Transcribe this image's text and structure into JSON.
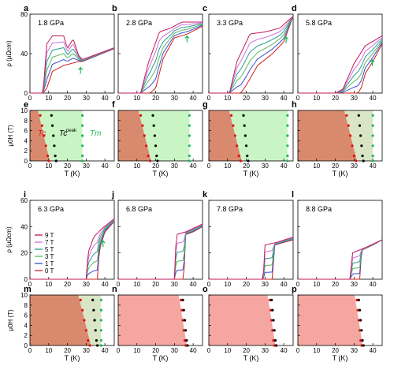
{
  "figure": {
    "ylabel_rho": "ρ (μΩcm)",
    "ylabel_field": "μ0H (T)",
    "xlabel": "T (K)",
    "label_tc": "Tc",
    "label_tcpeak": "Tc",
    "label_tcpeak_sup": "peak",
    "label_tm": "Tm"
  },
  "colors": {
    "field_9T": "#c2185b",
    "field_7T": "#d070d8",
    "field_5T": "#2a9d8f",
    "field_3T": "#5cb85c",
    "field_1T": "#3a4fd0",
    "field_0T": "#d11f1f",
    "sc_region": "#d98a6e",
    "sc_region_light": "#f5a6a0",
    "intermediate_region": "#d9e6c6",
    "normal_region": "#c9f5c4",
    "tc_dots": "#e01010",
    "tcpeak_dots": "#000000",
    "tm_dots": "#1db954",
    "arrow": "#1db954"
  },
  "legend": {
    "labels": [
      "9 T",
      "7 T",
      "5 T",
      "3 T",
      "1 T",
      "0 T"
    ]
  },
  "chart_data": [
    {
      "panel": "a",
      "type": "line",
      "pressure": "1.8 GPa",
      "fields_T": [
        0,
        1,
        3,
        5,
        7,
        9
      ],
      "x": "T (K)",
      "ylabel": "ρ (μΩcm)",
      "xlim": [
        0,
        45
      ],
      "ylim": [
        0,
        80
      ],
      "xticks": [
        "0",
        "10",
        "20",
        "30",
        "40"
      ],
      "yticks": [
        "0",
        "40",
        "80"
      ],
      "curves_9T": [
        [
          0,
          0
        ],
        [
          7,
          0
        ],
        [
          9,
          50
        ],
        [
          12,
          58
        ],
        [
          18,
          58
        ],
        [
          20,
          45
        ],
        [
          23,
          55
        ],
        [
          26,
          38
        ],
        [
          28,
          34
        ],
        [
          45,
          46
        ]
      ],
      "curves_0T": [
        [
          0,
          0
        ],
        [
          7,
          0
        ],
        [
          9,
          5
        ],
        [
          12,
          22
        ],
        [
          18,
          28
        ],
        [
          22,
          30
        ],
        [
          26,
          32
        ],
        [
          28,
          32
        ],
        [
          45,
          45
        ]
      ],
      "arrow_at_K": 27
    },
    {
      "panel": "b",
      "type": "line",
      "pressure": "2.8 GPa",
      "xlim": [
        0,
        45
      ],
      "ylim": [
        0,
        80
      ],
      "xticks": [
        "0",
        "10",
        "20",
        "30",
        "40"
      ],
      "yticks": [
        "0",
        "40",
        "80"
      ],
      "curves_9T": [
        [
          0,
          0
        ],
        [
          12,
          0
        ],
        [
          16,
          30
        ],
        [
          22,
          62
        ],
        [
          28,
          66
        ],
        [
          34,
          72
        ],
        [
          45,
          72
        ]
      ],
      "curves_0T": [
        [
          0,
          0
        ],
        [
          17,
          0
        ],
        [
          20,
          5
        ],
        [
          24,
          35
        ],
        [
          30,
          56
        ],
        [
          37,
          60
        ],
        [
          45,
          68
        ]
      ],
      "arrow_at_K": 37
    },
    {
      "panel": "c",
      "type": "line",
      "pressure": "3.3 GPa",
      "xlim": [
        0,
        45
      ],
      "ylim": [
        0,
        80
      ],
      "xticks": [
        "0",
        "10",
        "20",
        "30",
        "40"
      ],
      "yticks": [
        "0",
        "40",
        "80"
      ],
      "curves_9T": [
        [
          0,
          0
        ],
        [
          11,
          0
        ],
        [
          15,
          32
        ],
        [
          22,
          60
        ],
        [
          30,
          62
        ],
        [
          38,
          66
        ],
        [
          45,
          78
        ]
      ],
      "curves_0T": [
        [
          0,
          0
        ],
        [
          17,
          0
        ],
        [
          20,
          8
        ],
        [
          26,
          28
        ],
        [
          34,
          40
        ],
        [
          40,
          52
        ],
        [
          45,
          78
        ]
      ],
      "arrow_at_K": 41
    },
    {
      "panel": "d",
      "type": "line",
      "pressure": "5.8 GPa",
      "xlim": [
        0,
        45
      ],
      "ylim": [
        0,
        80
      ],
      "xticks": [
        "0",
        "10",
        "20",
        "30",
        "40"
      ],
      "yticks": [
        "0",
        "40",
        "80"
      ],
      "curves_9T": [
        [
          0,
          0
        ],
        [
          20,
          0
        ],
        [
          24,
          4
        ],
        [
          30,
          30
        ],
        [
          36,
          48
        ],
        [
          45,
          58
        ]
      ],
      "curves_0T": [
        [
          0,
          0
        ],
        [
          32,
          0
        ],
        [
          34,
          6
        ],
        [
          36,
          20
        ],
        [
          40,
          32
        ],
        [
          45,
          50
        ]
      ],
      "arrow_at_K": 40
    },
    {
      "panel": "e",
      "type": "scatter",
      "xlim": [
        0,
        45
      ],
      "ylim": [
        0,
        10
      ],
      "xticks": [
        "0",
        "10",
        "20",
        "30",
        "40"
      ],
      "yticks": [
        "0",
        "2",
        "4",
        "6",
        "8",
        "10"
      ],
      "Tc": [
        [
          10,
          0
        ],
        [
          9.5,
          1
        ],
        [
          8.5,
          3
        ],
        [
          7.5,
          5
        ],
        [
          6.5,
          7
        ],
        [
          5.5,
          9
        ]
      ],
      "Tc_peak": [
        [
          14,
          0
        ],
        [
          13.5,
          1
        ],
        [
          13,
          3
        ],
        [
          12.5,
          5
        ],
        [
          12,
          7
        ],
        [
          11.5,
          9
        ]
      ],
      "Tm": [
        [
          28,
          0
        ],
        [
          28,
          1
        ],
        [
          28,
          3
        ],
        [
          28,
          5
        ],
        [
          28,
          7
        ],
        [
          28,
          9
        ]
      ],
      "annotations": [
        "Tc",
        "Tcpeak",
        "Tm"
      ]
    },
    {
      "panel": "f",
      "type": "scatter",
      "xlim": [
        0,
        45
      ],
      "ylim": [
        0,
        10
      ],
      "xticks": [
        "0",
        "10",
        "20",
        "30",
        "40"
      ],
      "yticks": [
        "0",
        "2",
        "4",
        "6",
        "8",
        "10"
      ],
      "Tc": [
        [
          17,
          0
        ],
        [
          16,
          1
        ],
        [
          15,
          3
        ],
        [
          14,
          5
        ],
        [
          13,
          7
        ],
        [
          12,
          9
        ]
      ],
      "Tc_peak": [
        [
          21,
          0
        ],
        [
          20.5,
          1
        ],
        [
          20,
          3
        ],
        [
          19.5,
          5
        ],
        [
          19,
          7
        ],
        [
          18.5,
          9
        ]
      ],
      "Tm": [
        [
          38,
          0
        ],
        [
          38,
          1
        ],
        [
          38,
          3
        ],
        [
          38,
          5
        ],
        [
          38,
          7
        ],
        [
          38,
          9
        ]
      ]
    },
    {
      "panel": "g",
      "type": "scatter",
      "xlim": [
        0,
        45
      ],
      "ylim": [
        0,
        10
      ],
      "xticks": [
        "0",
        "10",
        "20",
        "30",
        "40"
      ],
      "yticks": [
        "0",
        "2",
        "4",
        "6",
        "8",
        "10"
      ],
      "Tc": [
        [
          17,
          0
        ],
        [
          16,
          1
        ],
        [
          15,
          3
        ],
        [
          14,
          5
        ],
        [
          13,
          7
        ],
        [
          12,
          9
        ]
      ],
      "Tc_peak": [
        [
          21,
          0
        ],
        [
          20.5,
          1
        ],
        [
          20,
          3
        ],
        [
          19.5,
          5
        ],
        [
          19,
          7
        ],
        [
          18.5,
          9
        ]
      ],
      "Tm": [
        [
          42,
          0
        ],
        [
          42,
          1
        ],
        [
          42,
          3
        ],
        [
          42,
          5
        ],
        [
          42,
          7
        ],
        [
          42,
          9
        ]
      ]
    },
    {
      "panel": "h",
      "type": "scatter",
      "xlim": [
        0,
        45
      ],
      "ylim": [
        0,
        10
      ],
      "xticks": [
        "0",
        "10",
        "20",
        "30",
        "40"
      ],
      "yticks": [
        "0",
        "2",
        "4",
        "6",
        "8",
        "10"
      ],
      "Tc": [
        [
          31,
          0
        ],
        [
          30,
          1
        ],
        [
          29,
          3
        ],
        [
          28,
          5
        ],
        [
          27,
          7
        ],
        [
          26,
          9
        ]
      ],
      "Tc_peak": [
        [
          35,
          0
        ],
        [
          34.5,
          1
        ],
        [
          34,
          3
        ],
        [
          33.5,
          5
        ],
        [
          33,
          7
        ],
        [
          32.5,
          9
        ]
      ],
      "Tm": [
        [
          40,
          0
        ],
        [
          40,
          1
        ],
        [
          40,
          3
        ],
        [
          40,
          5
        ],
        [
          40,
          7
        ],
        [
          40,
          9
        ]
      ]
    },
    {
      "panel": "i",
      "type": "line",
      "pressure": "6.3 GPa",
      "xlim": [
        0,
        45
      ],
      "ylim": [
        0,
        60
      ],
      "xticks": [
        "0",
        "10",
        "20",
        "30",
        "40"
      ],
      "yticks": [
        "0",
        "20",
        "40",
        "60"
      ],
      "curves_9T": [
        [
          0,
          0
        ],
        [
          30,
          0
        ],
        [
          31,
          20
        ],
        [
          34,
          32
        ],
        [
          38,
          38
        ],
        [
          45,
          46
        ]
      ],
      "curves_0T": [
        [
          0,
          0
        ],
        [
          36,
          0
        ],
        [
          37,
          22
        ],
        [
          40,
          36
        ],
        [
          45,
          44
        ]
      ],
      "arrow_at_K": 39
    },
    {
      "panel": "j",
      "type": "line",
      "pressure": "6.8 GPa",
      "xlim": [
        0,
        45
      ],
      "ylim": [
        0,
        60
      ],
      "xticks": [
        "0",
        "10",
        "20",
        "30",
        "40"
      ],
      "yticks": [
        "0",
        "20",
        "40",
        "60"
      ],
      "curves_9T": [
        [
          0,
          0
        ],
        [
          30,
          0
        ],
        [
          31,
          34
        ],
        [
          36,
          36
        ],
        [
          45,
          42
        ]
      ],
      "curves_0T": [
        [
          0,
          0
        ],
        [
          35,
          0
        ],
        [
          36,
          34
        ],
        [
          40,
          36
        ],
        [
          45,
          40
        ]
      ]
    },
    {
      "panel": "k",
      "type": "line",
      "pressure": "7.8 GPa",
      "xlim": [
        0,
        45
      ],
      "ylim": [
        0,
        60
      ],
      "xticks": [
        "0",
        "10",
        "20",
        "30",
        "40"
      ],
      "yticks": [
        "0",
        "20",
        "40",
        "60"
      ],
      "curves_9T": [
        [
          0,
          0
        ],
        [
          29,
          0
        ],
        [
          30,
          26
        ],
        [
          36,
          28
        ],
        [
          45,
          32
        ]
      ],
      "curves_0T": [
        [
          0,
          0
        ],
        [
          34,
          0
        ],
        [
          35,
          26
        ],
        [
          40,
          28
        ],
        [
          45,
          30
        ]
      ]
    },
    {
      "panel": "l",
      "type": "line",
      "pressure": "8.8 GPa",
      "xlim": [
        0,
        45
      ],
      "ylim": [
        0,
        60
      ],
      "xticks": [
        "0",
        "10",
        "20",
        "30",
        "40"
      ],
      "yticks": [
        "0",
        "20",
        "40",
        "60"
      ],
      "curves_9T": [
        [
          0,
          0
        ],
        [
          28,
          0
        ],
        [
          29,
          20
        ],
        [
          36,
          24
        ],
        [
          45,
          30
        ]
      ],
      "curves_0T": [
        [
          0,
          0
        ],
        [
          33,
          0
        ],
        [
          34,
          22
        ],
        [
          40,
          26
        ],
        [
          45,
          30
        ]
      ]
    },
    {
      "panel": "m",
      "type": "scatter",
      "xlim": [
        0,
        45
      ],
      "ylim": [
        0,
        10
      ],
      "xticks": [
        "0",
        "10",
        "20",
        "30",
        "40"
      ],
      "yticks": [
        "0",
        "2",
        "4",
        "6",
        "8",
        "10"
      ],
      "Tc": [
        [
          32,
          0
        ],
        [
          31,
          1
        ],
        [
          30,
          3
        ],
        [
          29,
          5
        ],
        [
          28,
          7
        ],
        [
          27,
          9
        ]
      ],
      "Tc_peak": [
        [
          36,
          0
        ],
        [
          35.5,
          1
        ],
        [
          35,
          3
        ],
        [
          34.5,
          5
        ],
        [
          34,
          7
        ],
        [
          33.5,
          9
        ]
      ],
      "Tm": [
        [
          38,
          0
        ],
        [
          38,
          1
        ],
        [
          38,
          3
        ],
        [
          38,
          5
        ],
        [
          38,
          7
        ],
        [
          38,
          9
        ]
      ]
    },
    {
      "panel": "n",
      "type": "scatter",
      "xlim": [
        0,
        45
      ],
      "ylim": [
        0,
        10
      ],
      "xticks": [
        "0",
        "10",
        "20",
        "30",
        "40"
      ],
      "yticks": [
        "0",
        "2",
        "4",
        "6",
        "8",
        "10"
      ],
      "Tc": [
        [
          36,
          0
        ],
        [
          35.5,
          1
        ],
        [
          35,
          3
        ],
        [
          34.5,
          5
        ],
        [
          34,
          7
        ],
        [
          33.5,
          9
        ]
      ],
      "Tc_peak": [
        [
          37,
          0
        ],
        [
          36.5,
          1
        ],
        [
          36,
          3
        ],
        [
          35.5,
          5
        ],
        [
          35,
          7
        ],
        [
          34.5,
          9
        ]
      ]
    },
    {
      "panel": "o",
      "type": "scatter",
      "xlim": [
        0,
        45
      ],
      "ylim": [
        0,
        10
      ],
      "xticks": [
        "0",
        "10",
        "20",
        "30",
        "40"
      ],
      "yticks": [
        "0",
        "2",
        "4",
        "6",
        "8",
        "10"
      ],
      "Tc": [
        [
          35,
          0
        ],
        [
          34.5,
          1
        ],
        [
          34,
          3
        ],
        [
          33.5,
          5
        ],
        [
          33,
          7
        ],
        [
          32.5,
          9
        ]
      ],
      "Tc_peak": [
        [
          36,
          0
        ],
        [
          35.5,
          1
        ],
        [
          35,
          3
        ],
        [
          34.5,
          5
        ],
        [
          34,
          7
        ],
        [
          33.5,
          9
        ]
      ]
    },
    {
      "panel": "p",
      "type": "scatter",
      "xlim": [
        0,
        45
      ],
      "ylim": [
        0,
        10
      ],
      "xticks": [
        "0",
        "10",
        "20",
        "30",
        "40"
      ],
      "yticks": [
        "0",
        "2",
        "4",
        "6",
        "8",
        "10"
      ],
      "Tc": [
        [
          34,
          0
        ],
        [
          33.5,
          1
        ],
        [
          33,
          3
        ],
        [
          32.5,
          5
        ],
        [
          32,
          7
        ],
        [
          31.5,
          9
        ]
      ],
      "Tc_peak": [
        [
          35,
          0
        ],
        [
          34.5,
          1
        ],
        [
          34,
          3
        ],
        [
          33.5,
          5
        ],
        [
          33,
          7
        ],
        [
          32.5,
          9
        ]
      ]
    }
  ]
}
